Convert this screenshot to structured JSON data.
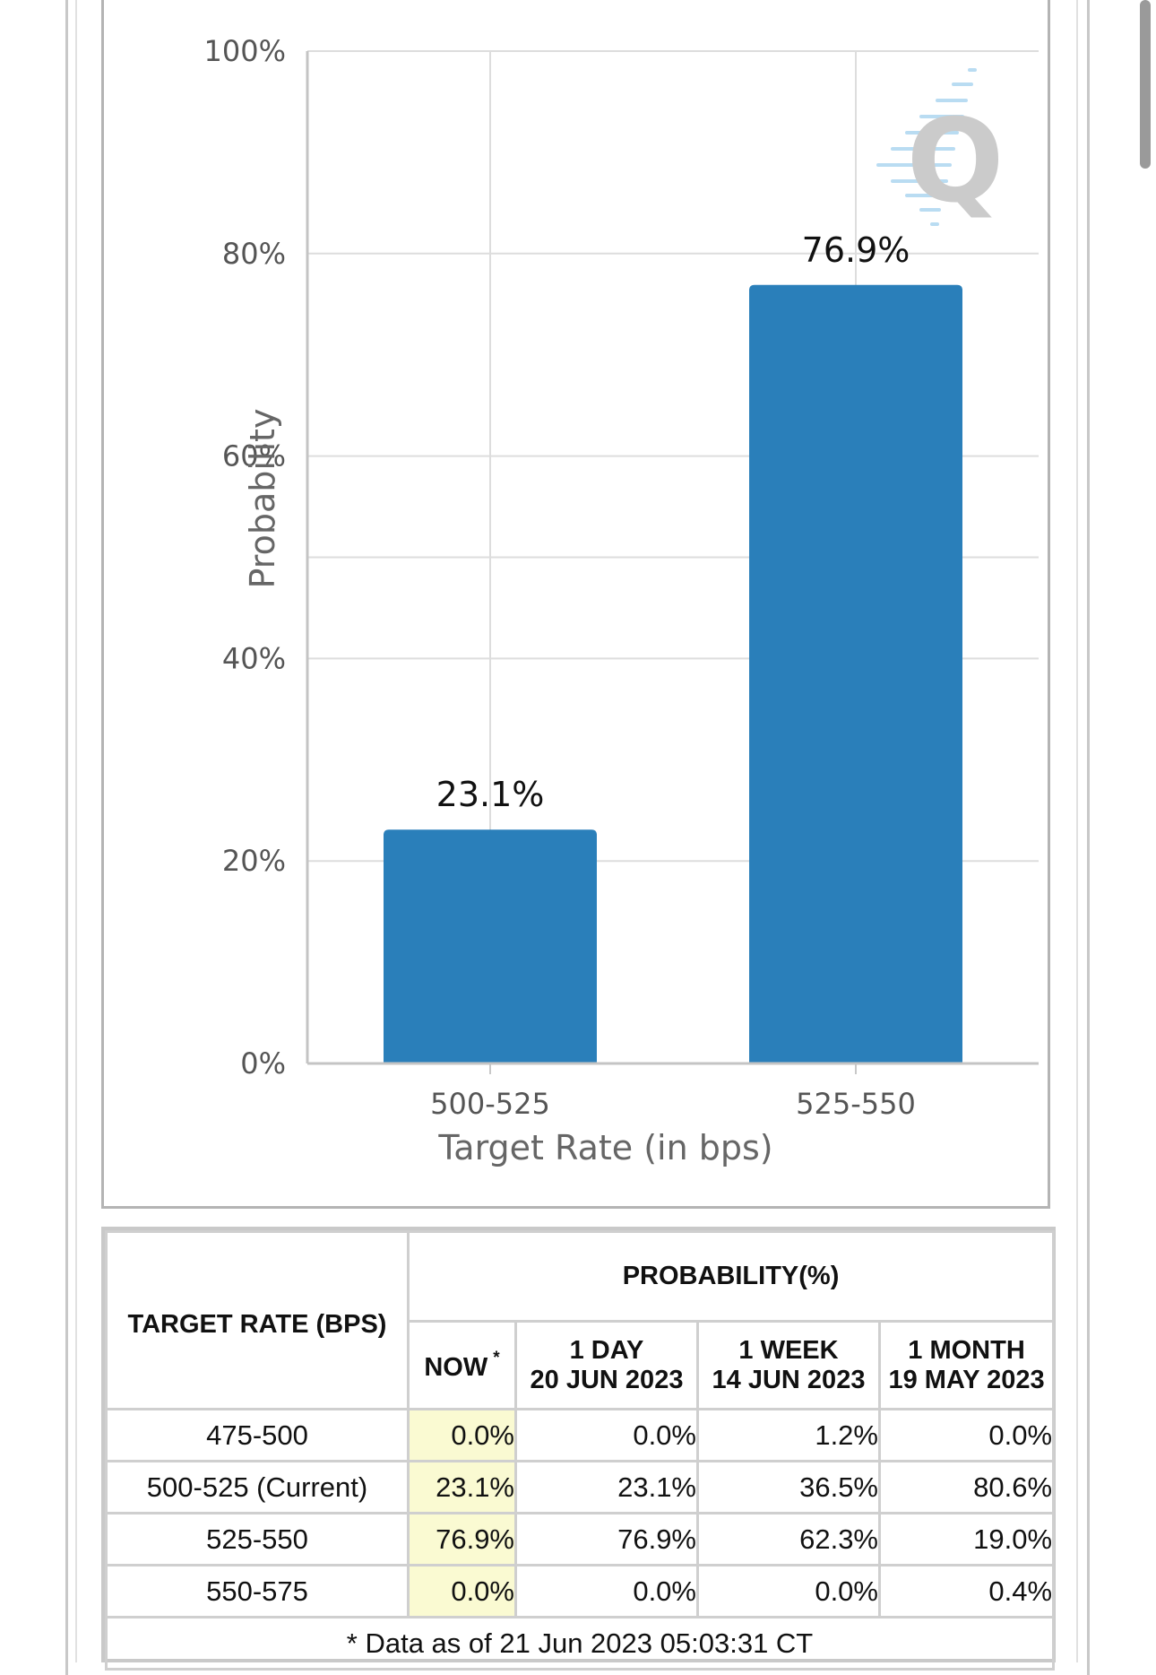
{
  "chart_data": {
    "type": "bar",
    "categories": [
      "500-525",
      "525-550"
    ],
    "values": [
      23.1,
      76.9
    ],
    "value_labels": [
      "23.1%",
      "76.9%"
    ],
    "xlabel": "Target Rate (in bps)",
    "ylabel": "Probability",
    "ylim": [
      0,
      100
    ],
    "yticks": [
      0,
      20,
      40,
      60,
      80,
      100
    ],
    "ytick_labels": [
      "0%",
      "20%",
      "40%",
      "60%",
      "80%",
      "100%"
    ],
    "grid": true,
    "bar_color": "#2a7fba",
    "watermark": "Q"
  },
  "table": {
    "header_rate": "TARGET RATE (BPS)",
    "header_prob": "PROBABILITY(%)",
    "columns": [
      {
        "line1": "NOW",
        "line2": "",
        "mark": "*"
      },
      {
        "line1": "1 DAY",
        "line2": "20 JUN 2023",
        "mark": ""
      },
      {
        "line1": "1 WEEK",
        "line2": "14 JUN 2023",
        "mark": ""
      },
      {
        "line1": "1 MONTH",
        "line2": "19 MAY 2023",
        "mark": ""
      }
    ],
    "rows": [
      {
        "rate": "475-500",
        "values": [
          "0.0%",
          "0.0%",
          "1.2%",
          "0.0%"
        ]
      },
      {
        "rate": "500-525 (Current)",
        "values": [
          "23.1%",
          "23.1%",
          "36.5%",
          "80.6%"
        ]
      },
      {
        "rate": "525-550",
        "values": [
          "76.9%",
          "76.9%",
          "62.3%",
          "19.0%"
        ]
      },
      {
        "rate": "550-575",
        "values": [
          "0.0%",
          "0.0%",
          "0.0%",
          "0.4%"
        ]
      }
    ],
    "now_highlight_color": "#fafad2",
    "footnote": "* Data as of 21 Jun 2023 05:03:31 CT"
  }
}
